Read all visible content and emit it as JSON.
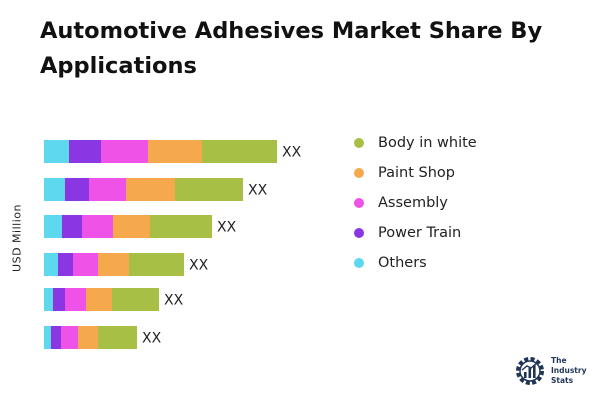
{
  "page": {
    "title": "Automotive Adhesives Market Share By Applications"
  },
  "chart_data": {
    "type": "bar",
    "orientation": "horizontal",
    "stacked": true,
    "title": "Automotive Adhesives Market Share By Applications",
    "ylabel": "USD Million",
    "xlabel": "",
    "grid": false,
    "legend_position": "right",
    "bar_value_label": "XX",
    "series": [
      {
        "name": "Others",
        "color": "#5dd8ef",
        "values": [
          25,
          21,
          18,
          14,
          9,
          7
        ]
      },
      {
        "name": "Power Train",
        "color": "#8a37e3",
        "values": [
          32,
          24,
          20,
          15,
          12,
          10
        ]
      },
      {
        "name": "Assembly",
        "color": "#ee52e6",
        "values": [
          47,
          37,
          31,
          25,
          21,
          17
        ]
      },
      {
        "name": "Paint Shop",
        "color": "#f5a94c",
        "values": [
          54,
          49,
          37,
          31,
          26,
          20
        ]
      },
      {
        "name": "Body in white",
        "color": "#a7bf44",
        "values": [
          75,
          68,
          62,
          55,
          47,
          39
        ]
      }
    ]
  },
  "legend": {
    "items": [
      {
        "label": "Body in white",
        "color": "#a7bf44"
      },
      {
        "label": "Paint Shop",
        "color": "#f5a94c"
      },
      {
        "label": "Assembly",
        "color": "#ee52e6"
      },
      {
        "label": "Power Train",
        "color": "#8a37e3"
      },
      {
        "label": "Others",
        "color": "#5dd8ef"
      }
    ]
  },
  "logo": {
    "line1": "The",
    "line2": "Industry",
    "line3": "Stats",
    "icon": "gear-chart-icon"
  }
}
